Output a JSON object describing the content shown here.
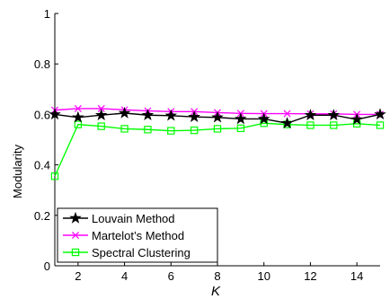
{
  "chart_data": {
    "type": "line",
    "xlabel": "K",
    "ylabel": "Modularity",
    "xlim": [
      1,
      15
    ],
    "ylim": [
      0,
      1
    ],
    "xticks": [
      2,
      4,
      6,
      8,
      10,
      12,
      14
    ],
    "yticks": [
      0,
      0.2,
      0.4,
      0.6,
      0.8,
      1
    ],
    "ytick_labels": [
      "0",
      "0.2",
      "0.4",
      "0.6",
      "0.8",
      "1"
    ],
    "grid": false,
    "legend_position": "bottom-left",
    "x": [
      1,
      2,
      3,
      4,
      5,
      6,
      7,
      8,
      9,
      10,
      11,
      12,
      13,
      14,
      15
    ],
    "series": [
      {
        "name": "Louvain Method",
        "color": "#000000",
        "marker": "star",
        "values": [
          0.6,
          0.588,
          0.597,
          0.605,
          0.597,
          0.595,
          0.59,
          0.588,
          0.582,
          0.582,
          0.565,
          0.597,
          0.597,
          0.58,
          0.6
        ]
      },
      {
        "name": "Martelot’s Method",
        "color": "#ff00ff",
        "marker": "x",
        "values": [
          0.617,
          0.623,
          0.623,
          0.618,
          0.614,
          0.611,
          0.611,
          0.607,
          0.604,
          0.603,
          0.603,
          0.602,
          0.602,
          0.6,
          0.6
        ]
      },
      {
        "name": "Spectral Clustering",
        "color": "#00ff00",
        "marker": "square",
        "values": [
          0.355,
          0.56,
          0.553,
          0.543,
          0.54,
          0.535,
          0.537,
          0.543,
          0.545,
          0.565,
          0.56,
          0.557,
          0.557,
          0.563,
          0.557
        ]
      }
    ]
  }
}
